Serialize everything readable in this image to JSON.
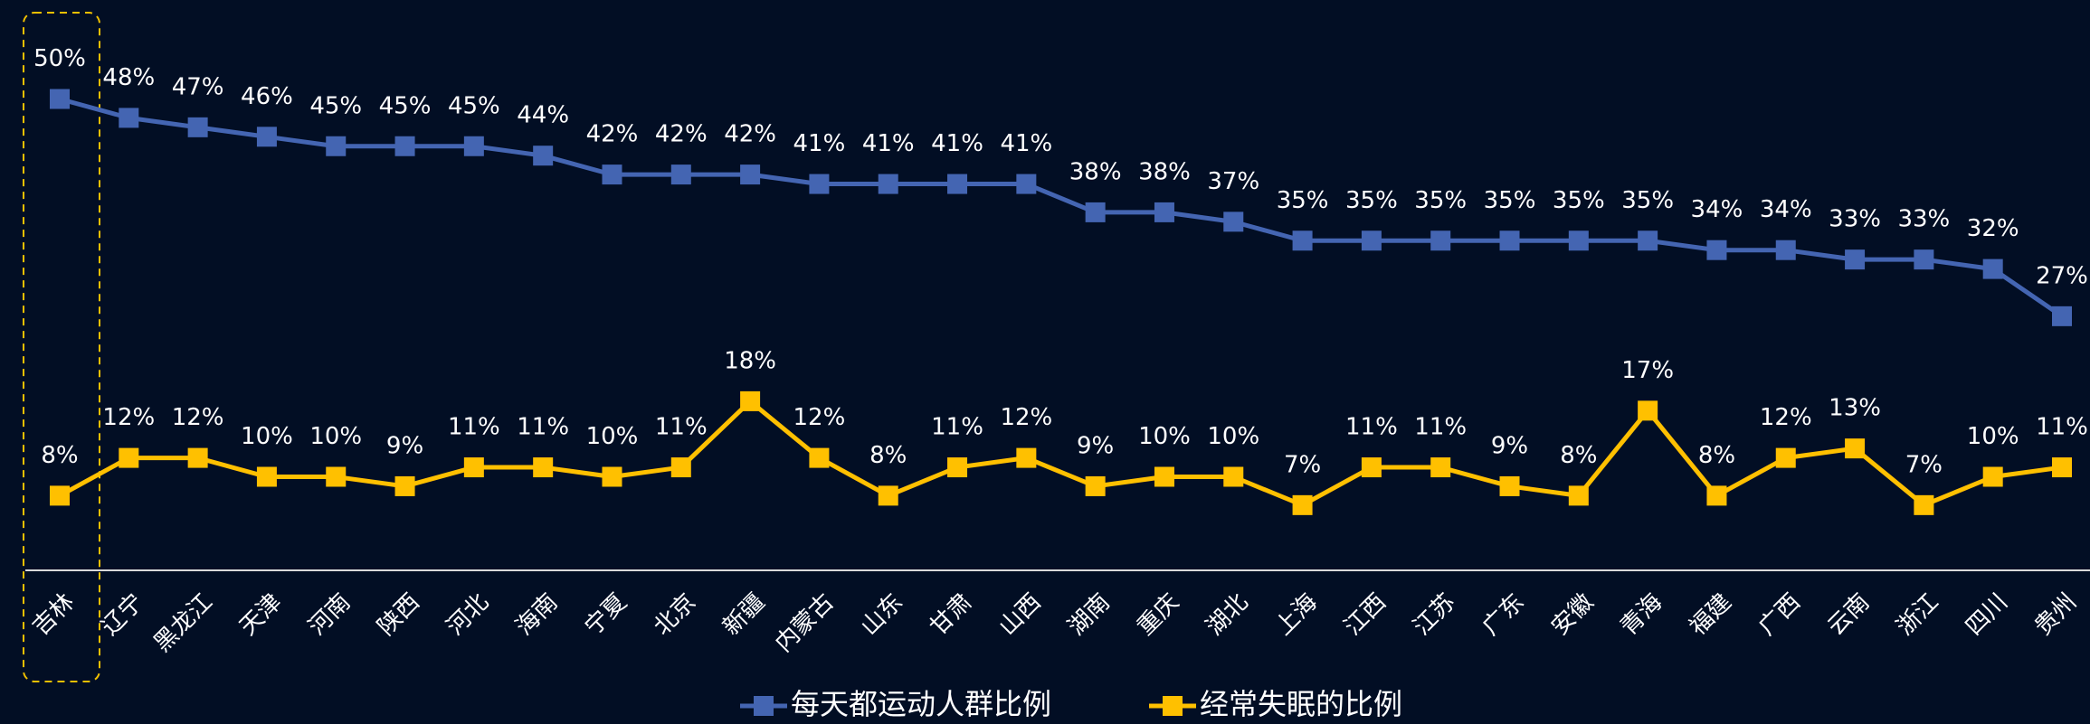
{
  "chart_data": {
    "type": "line",
    "categories": [
      "吉林",
      "辽宁",
      "黑龙江",
      "天津",
      "河南",
      "陕西",
      "河北",
      "海南",
      "宁夏",
      "北京",
      "新疆",
      "内蒙古",
      "山东",
      "甘肃",
      "山西",
      "湖南",
      "重庆",
      "湖北",
      "上海",
      "江西",
      "江苏",
      "广东",
      "安徽",
      "青海",
      "福建",
      "广西",
      "云南",
      "浙江",
      "四川",
      "贵州"
    ],
    "series": [
      {
        "name": "每天都运动人群比例",
        "color": "#4465b2",
        "values": [
          50,
          48,
          47,
          46,
          45,
          45,
          45,
          44,
          42,
          42,
          42,
          41,
          41,
          41,
          41,
          38,
          38,
          37,
          35,
          35,
          35,
          35,
          35,
          35,
          34,
          34,
          33,
          33,
          32,
          27
        ],
        "value_labels": [
          "50%",
          "48%",
          "47%",
          "46%",
          "45%",
          "45%",
          "45%",
          "44%",
          "42%",
          "42%",
          "42%",
          "41%",
          "41%",
          "41%",
          "41%",
          "38%",
          "38%",
          "37%",
          "35%",
          "35%",
          "35%",
          "35%",
          "35%",
          "35%",
          "34%",
          "34%",
          "33%",
          "33%",
          "32%",
          "27%"
        ]
      },
      {
        "name": "经常失眠的比例",
        "color": "#ffc000",
        "values": [
          8,
          12,
          12,
          10,
          10,
          9,
          11,
          11,
          10,
          11,
          18,
          12,
          8,
          11,
          12,
          9,
          10,
          10,
          7,
          11,
          11,
          9,
          8,
          17,
          8,
          12,
          13,
          7,
          10,
          11
        ],
        "value_labels": [
          "8%",
          "12%",
          "12%",
          "10%",
          "10%",
          "9%",
          "11%",
          "11%",
          "10%",
          "11%",
          "18%",
          "12%",
          "8%",
          "11%",
          "12%",
          "9%",
          "10%",
          "10%",
          "7%",
          "11%",
          "11%",
          "9%",
          "8%",
          "17%",
          "8%",
          "12%",
          "13%",
          "7%",
          "10%",
          "11%"
        ]
      }
    ],
    "legend": "bottom"
  }
}
